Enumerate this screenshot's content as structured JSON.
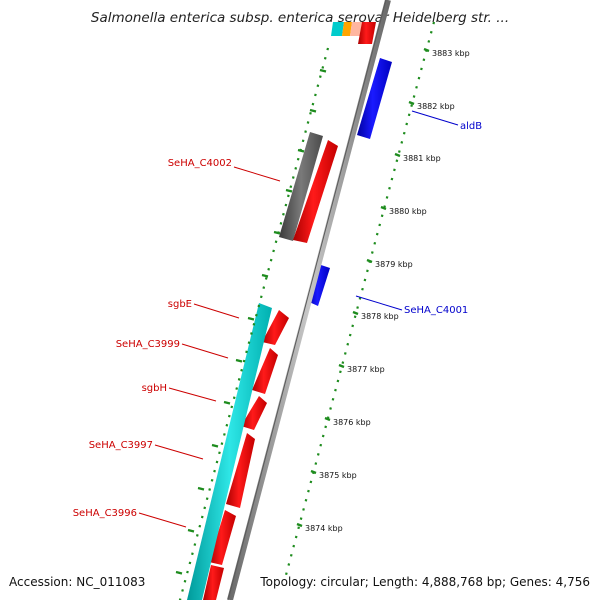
{
  "title": "Salmonella enterica subsp. enterica serovar Heidelberg str. ...",
  "accession_label": "Accession: NC_011083",
  "summary_label": "Topology: circular; Length: 4,888,768 bp; Genes: 4,756",
  "ticks": [
    "3883 kbp",
    "3882 kbp",
    "3881 kbp",
    "3880 kbp",
    "3879 kbp",
    "3878 kbp",
    "3877 kbp",
    "3876 kbp",
    "3875 kbp",
    "3874 kbp"
  ],
  "gene_labels": {
    "left": [
      "SeHA_C4002",
      "sgbE",
      "SeHA_C3999",
      "sgbH",
      "SeHA_C3997",
      "SeHA_C3996"
    ],
    "right": [
      "aldB",
      "SeHA_C4001"
    ]
  },
  "colors": {
    "forward_cds": "#ff0000",
    "reverse_cds": "#0000ff",
    "gray_feature": "#606060",
    "cyan_feature": "#00cccc",
    "left_label": "#cc0000",
    "right_label": "#0000cc",
    "ruler": "#1e8c1e",
    "backbone": "#808080"
  }
}
